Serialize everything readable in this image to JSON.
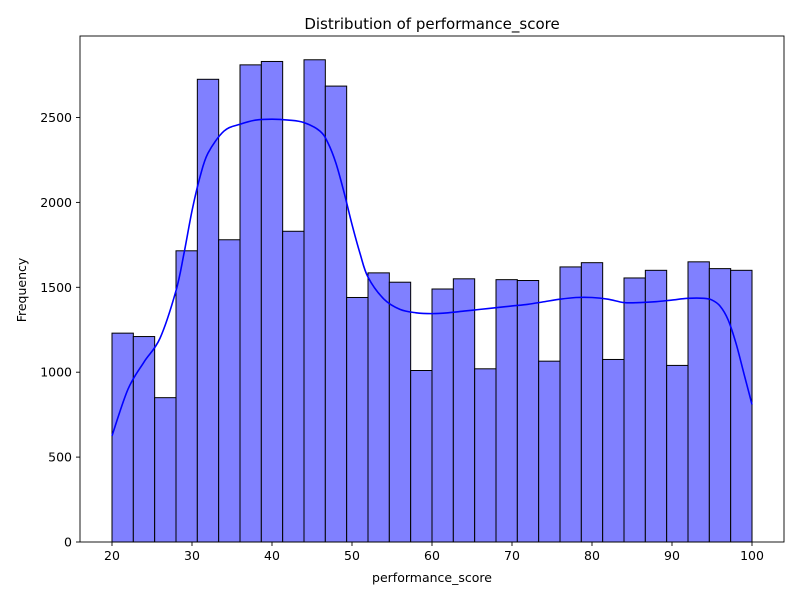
{
  "chart_data": {
    "type": "bar",
    "subtype": "histogram_with_kde",
    "title": "Distribution of performance_score",
    "xlabel": "performance_score",
    "ylabel": "Frequency",
    "xlim": [
      16.0,
      104.0
    ],
    "ylim": [
      0,
      2980
    ],
    "xticks": [
      20,
      30,
      40,
      50,
      60,
      70,
      80,
      90,
      100
    ],
    "yticks": [
      0,
      500,
      1000,
      1500,
      2000,
      2500
    ],
    "grid": false,
    "legend": "none",
    "bin_start": 20,
    "bin_width": 2.6667,
    "values": [
      1230,
      1210,
      850,
      1715,
      2725,
      1780,
      2810,
      2830,
      1830,
      2840,
      2685,
      1440,
      1585,
      1530,
      1010,
      1490,
      1550,
      1020,
      1545,
      1540,
      1065,
      1620,
      1645,
      1075,
      1555,
      1600,
      1040,
      1650,
      1610,
      1600
    ],
    "kde": {
      "x": [
        20,
        22,
        24,
        26,
        28,
        29,
        30,
        31,
        32,
        34,
        36,
        38,
        40,
        42,
        44,
        46,
        47,
        48,
        49,
        50,
        51,
        52,
        54,
        56,
        58,
        60,
        62,
        64,
        66,
        68,
        70,
        72,
        74,
        76,
        78,
        80,
        82,
        84,
        86,
        88,
        90,
        92,
        94,
        95,
        96,
        97,
        98,
        99,
        100
      ],
      "y": [
        625,
        900,
        1060,
        1200,
        1480,
        1700,
        1950,
        2150,
        2290,
        2420,
        2460,
        2485,
        2490,
        2485,
        2470,
        2420,
        2350,
        2230,
        2060,
        1870,
        1700,
        1560,
        1430,
        1370,
        1350,
        1345,
        1350,
        1360,
        1370,
        1380,
        1390,
        1400,
        1415,
        1430,
        1440,
        1440,
        1430,
        1410,
        1410,
        1415,
        1425,
        1435,
        1435,
        1425,
        1390,
        1310,
        1170,
        990,
        810
      ]
    },
    "colors": {
      "bar_fill": "#8080ff",
      "bar_edge": "#000000",
      "kde_line": "#0000ff"
    }
  }
}
